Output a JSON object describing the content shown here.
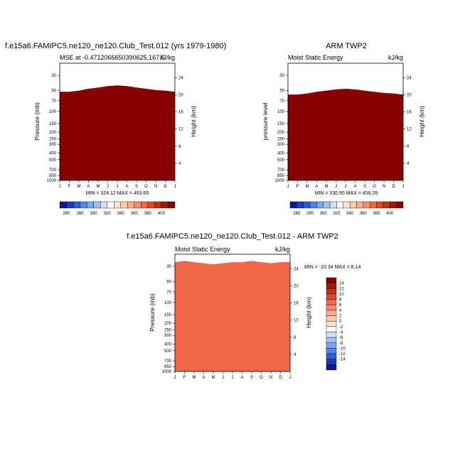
{
  "chart_data": [
    {
      "type": "heatmap",
      "id": "p1",
      "title": "f.e15a6.FAMIPC5.ne120_ne120.Club_Test.012 (yrs 1979-1980)",
      "left_label": "MSE at -0.4712066650390625,167.5",
      "right_label": "kJ/kg",
      "ylabel": "Pressure (mb)",
      "y2label": "Height (km)",
      "months": [
        "J",
        "F",
        "M",
        "A",
        "M",
        "J",
        "J",
        "A",
        "S",
        "O",
        "N",
        "D",
        "J"
      ],
      "pressure_ticks": [
        "30",
        "50",
        "70",
        "100",
        "150",
        "200",
        "250",
        "300",
        "400",
        "500",
        "700",
        "850",
        "1000"
      ],
      "height_ticks": [
        "24",
        "20",
        "16",
        "12",
        "8",
        "4"
      ],
      "stats": "MIN = 324.12 MAX = 463.65",
      "levels_hpa": [
        1000,
        850,
        700,
        500,
        400,
        300,
        250,
        200,
        150,
        100,
        70,
        50,
        30,
        20
      ],
      "bands": [
        {
          "color": "#fdd9c4",
          "top": [
            1000,
            1000,
            1000,
            1000,
            1000,
            1000,
            1000,
            1000,
            1000,
            1000,
            1000,
            1000,
            1000
          ]
        },
        {
          "color": "#ffffff",
          "top": [
            960,
            950,
            960,
            950,
            950,
            960,
            960,
            950,
            950,
            960,
            960,
            950,
            960
          ]
        },
        {
          "color": "#d6e6f7",
          "top": [
            940,
            930,
            930,
            940,
            930,
            930,
            940,
            930,
            930,
            940,
            930,
            930,
            940
          ]
        },
        {
          "color": "#fdeee3",
          "top": [
            760,
            780,
            750,
            680,
            610,
            550,
            490,
            500,
            540,
            590,
            640,
            690,
            720
          ]
        },
        {
          "color": "#fdc9ad",
          "top": [
            255,
            255,
            250,
            245,
            235,
            225,
            212,
            215,
            225,
            235,
            245,
            250,
            255
          ]
        },
        {
          "color": "#fcab8f",
          "top": [
            138,
            138,
            136,
            133,
            129,
            124,
            120,
            121,
            125,
            129,
            132,
            135,
            138
          ]
        },
        {
          "color": "#f88b6d",
          "top": [
            105,
            105,
            103,
            100,
            97,
            93,
            90,
            91,
            94,
            97,
            100,
            102,
            104
          ]
        },
        {
          "color": "#f06848",
          "top": [
            88,
            88,
            86,
            83,
            80,
            77,
            75,
            76,
            78,
            81,
            84,
            86,
            88
          ]
        },
        {
          "color": "#dc4a2c",
          "top": [
            76,
            76,
            74,
            71,
            68,
            65,
            64,
            65,
            67,
            69,
            72,
            74,
            76
          ]
        },
        {
          "color": "#c23118",
          "top": [
            66,
            66,
            64,
            61,
            58,
            56,
            55,
            56,
            58,
            60,
            62,
            64,
            66
          ]
        },
        {
          "color": "#a01a0c",
          "top": [
            58,
            58,
            56,
            53,
            50,
            48,
            47,
            48,
            50,
            52,
            55,
            56,
            58
          ]
        },
        {
          "color": "#870000",
          "top": [
            52,
            52,
            50,
            47,
            45,
            43,
            42,
            43,
            45,
            47,
            49,
            50,
            52
          ]
        }
      ]
    },
    {
      "type": "heatmap",
      "id": "p2",
      "title": "ARM TWP2",
      "left_label": "Moist Static Energy",
      "right_label": "kJ/kg",
      "ylabel": "pressure level",
      "y2label": "Height (km)",
      "months": [
        "J",
        "F",
        "M",
        "A",
        "M",
        "J",
        "J",
        "A",
        "S",
        "O",
        "N",
        "D",
        "J"
      ],
      "pressure_ticks": [
        "30",
        "50",
        "70",
        "100",
        "150",
        "200",
        "250",
        "300",
        "400",
        "500",
        "700",
        "850",
        "1000"
      ],
      "height_ticks": [
        "24",
        "20",
        "16",
        "12",
        "8",
        "4"
      ],
      "stats": "MIN = 330.95 MAX = 459.26",
      "levels_hpa": [
        1000,
        850,
        700,
        500,
        400,
        300,
        250,
        200,
        150,
        100,
        70,
        50,
        30,
        20
      ],
      "bands": [
        {
          "color": "#fdd9c4",
          "top": [
            1000,
            1000,
            1000,
            1000,
            1000,
            1000,
            1000,
            1000,
            1000,
            1000,
            1000,
            1000,
            1000
          ]
        },
        {
          "color": "#fdeee3",
          "top": [
            910,
            920,
            915,
            910,
            905,
            910,
            915,
            910,
            905,
            910,
            915,
            920,
            910
          ]
        },
        {
          "color": "#fdc9ad",
          "top": [
            405,
            402,
            398,
            392,
            382,
            372,
            365,
            368,
            376,
            385,
            392,
            398,
            402
          ]
        },
        {
          "color": "#fcab8f",
          "top": [
            205,
            205,
            202,
            198,
            193,
            188,
            185,
            186,
            190,
            195,
            199,
            202,
            205
          ]
        },
        {
          "color": "#f88b6d",
          "top": [
            138,
            138,
            136,
            132,
            128,
            124,
            122,
            123,
            126,
            129,
            133,
            136,
            138
          ]
        },
        {
          "color": "#f06848",
          "top": [
            106,
            106,
            104,
            101,
            97,
            94,
            92,
            93,
            96,
            99,
            102,
            104,
            106
          ]
        },
        {
          "color": "#dc4a2c",
          "top": [
            88,
            88,
            86,
            83,
            80,
            77,
            76,
            77,
            79,
            82,
            85,
            86,
            88
          ]
        },
        {
          "color": "#c23118",
          "top": [
            74,
            74,
            72,
            69,
            66,
            64,
            63,
            64,
            66,
            68,
            71,
            72,
            74
          ]
        },
        {
          "color": "#a01a0c",
          "top": [
            64,
            64,
            62,
            59,
            57,
            55,
            54,
            55,
            57,
            59,
            61,
            62,
            64
          ]
        },
        {
          "color": "#870000",
          "top": [
            57,
            57,
            55,
            52,
            50,
            48,
            47,
            48,
            50,
            52,
            54,
            55,
            57
          ]
        }
      ]
    },
    {
      "type": "heatmap",
      "id": "p3",
      "title": "f.e15a6.FAMIPC5.ne120_ne120.Club_Test.012 - ARM TWP2",
      "left_label": "Moist Static Energy",
      "right_label": "kJ/kg",
      "ylabel": "Pressure (mb)",
      "y2label": "Height (km)",
      "months": [
        "J",
        "F",
        "M",
        "A",
        "M",
        "J",
        "J",
        "A",
        "S",
        "O",
        "N",
        "D",
        "J"
      ],
      "pressure_ticks": [
        "30",
        "50",
        "70",
        "100",
        "150",
        "200",
        "250",
        "300",
        "400",
        "500",
        "700",
        "850",
        "1000"
      ],
      "height_ticks": [
        "24",
        "20",
        "16",
        "12",
        "8",
        "4"
      ],
      "stats": "MIN = -10.34 MAX =  8.14",
      "levels_hpa": [
        1000,
        850,
        700,
        500,
        400,
        300,
        250,
        200,
        150,
        100,
        70,
        50,
        30,
        20
      ],
      "bands": [
        {
          "color": "#b5cdf0",
          "top": [
            1000,
            1000,
            1000,
            1000,
            1000,
            1000,
            1000,
            1000,
            1000,
            1000,
            1000,
            1000,
            1000
          ]
        },
        {
          "color": "#4f86e8",
          "top": [
            960,
            960,
            960,
            960,
            960,
            960,
            960,
            960,
            960,
            960,
            960,
            960,
            960
          ]
        },
        {
          "color": "#1c49c8",
          "top": [
            900,
            905,
            900,
            895,
            900,
            905,
            900,
            895,
            900,
            905,
            900,
            895,
            900
          ]
        },
        {
          "color": "#4f86e8",
          "top": [
            840,
            830,
            835,
            840,
            825,
            830,
            840,
            835,
            830,
            840,
            835,
            830,
            840
          ]
        },
        {
          "color": "#b5cdf0",
          "top": [
            790,
            780,
            785,
            790,
            775,
            780,
            790,
            785,
            780,
            790,
            785,
            780,
            790
          ]
        },
        {
          "color": "#a3bff3",
          "top": [
            640,
            650,
            630,
            500,
            460,
            470,
            330,
            320,
            470,
            610,
            640,
            650,
            640
          ]
        },
        {
          "color": "#b5cdf0",
          "top": [
            500,
            530,
            510,
            430,
            400,
            410,
            290,
            285,
            400,
            480,
            500,
            510,
            500
          ]
        },
        {
          "color": "#d2e1f6",
          "top": [
            130,
            128,
            126,
            120,
            115,
            112,
            112,
            118,
            124,
            128,
            130,
            130,
            130
          ]
        },
        {
          "color": "#b5cdf0",
          "top": [
            100,
            98,
            96,
            95,
            96,
            98,
            100,
            99,
            97,
            95,
            96,
            97,
            100
          ]
        },
        {
          "color": "#2a5fd8",
          "top": [
            85,
            82,
            80,
            78,
            80,
            82,
            84,
            83,
            80,
            78,
            80,
            82,
            85
          ]
        },
        {
          "color": "#b5cdf0",
          "top": [
            58,
            55,
            52,
            51,
            53,
            55,
            56,
            55,
            53,
            51,
            52,
            54,
            58
          ]
        },
        {
          "color": "#fdeee3",
          "top": [
            44,
            41,
            40,
            42,
            44,
            46,
            45,
            43,
            41,
            40,
            42,
            43,
            44
          ]
        },
        {
          "color": "#fcab8f",
          "top": [
            33,
            31,
            32,
            34,
            36,
            35,
            34,
            33,
            31,
            32,
            33,
            33,
            33
          ]
        },
        {
          "color": "#f06848",
          "top": [
            26,
            25,
            26,
            27,
            28,
            27,
            26,
            26,
            25,
            26,
            27,
            26,
            26
          ]
        }
      ]
    }
  ],
  "colorbar_horizontal": {
    "colors": [
      "#0a1a8f",
      "#1c39c0",
      "#2a5fd8",
      "#4f86e8",
      "#7aa6ef",
      "#a3bff3",
      "#d2e1f6",
      "#ffffff",
      "#fde3d3",
      "#fcc9ae",
      "#fcab8f",
      "#f88b6d",
      "#f06848",
      "#dc4a2c",
      "#c23118",
      "#a01a0c",
      "#870000"
    ],
    "labels": [
      "260",
      "280",
      "300",
      "320",
      "340",
      "360",
      "380",
      "400"
    ]
  },
  "colorbar_vertical": {
    "colors": [
      "#870000",
      "#a01a0c",
      "#c23118",
      "#dc4a2c",
      "#f06848",
      "#f88b6d",
      "#fcab8f",
      "#fcc9ae",
      "#fde3d3",
      "#ffffff",
      "#d2e1f6",
      "#a3bff3",
      "#7aa6ef",
      "#4f86e8",
      "#2a5fd8",
      "#1c39c0",
      "#0a1a8f"
    ],
    "labels": [
      "14",
      "12",
      "10",
      "8",
      "6",
      "4",
      "2",
      "0",
      "-2",
      "-4",
      "-6",
      "-8",
      "-10",
      "-12",
      "-14"
    ]
  }
}
